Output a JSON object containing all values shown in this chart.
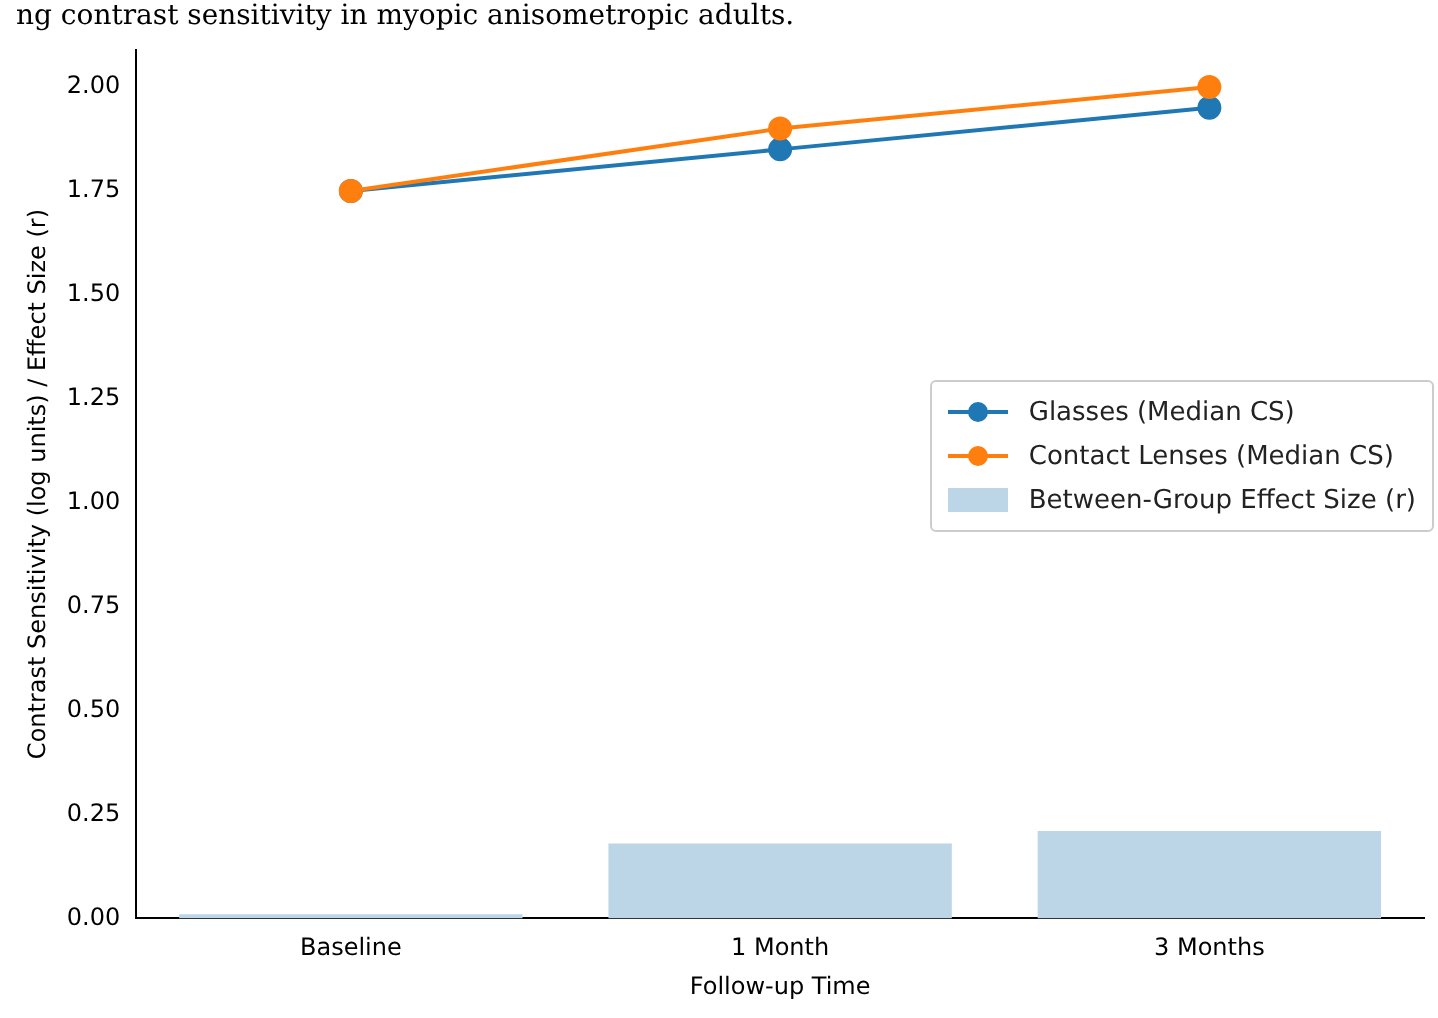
{
  "chart_data": {
    "type": "line",
    "title": "ng contrast sensitivity in myopic anisometropic adults.",
    "xlabel": "Follow-up Time",
    "ylabel": "Contrast Sensitivity (log units) / Effect Size (r)",
    "categories": [
      "Baseline",
      "1 Month",
      "3 Months"
    ],
    "series": [
      {
        "name": "Glasses (Median CS)",
        "color": "#1f77b4",
        "values": [
          1.75,
          1.85,
          1.95
        ]
      },
      {
        "name": "Contact Lenses (Median CS)",
        "color": "#ff7f0e",
        "values": [
          1.75,
          1.9,
          2.0
        ]
      },
      {
        "name": "Between-Group Effect Size (r)",
        "type": "bar",
        "color": "#bcd6e8",
        "values": [
          0.01,
          0.18,
          0.21
        ]
      }
    ],
    "ylim": [
      0,
      2.09
    ],
    "yticks": [
      {
        "value": 0,
        "label": "0.00"
      },
      {
        "value": 0.25,
        "label": "0.25"
      },
      {
        "value": 0.5,
        "label": "0.50"
      },
      {
        "value": 0.75,
        "label": "0.75"
      },
      {
        "value": 1,
        "label": "1.00"
      },
      {
        "value": 1.25,
        "label": "1.25"
      },
      {
        "value": 1.5,
        "label": "1.50"
      },
      {
        "value": 1.75,
        "label": "1.75"
      },
      {
        "value": 2,
        "label": "2.00"
      }
    ],
    "marker": "circle",
    "legend": "right",
    "grid": false
  }
}
